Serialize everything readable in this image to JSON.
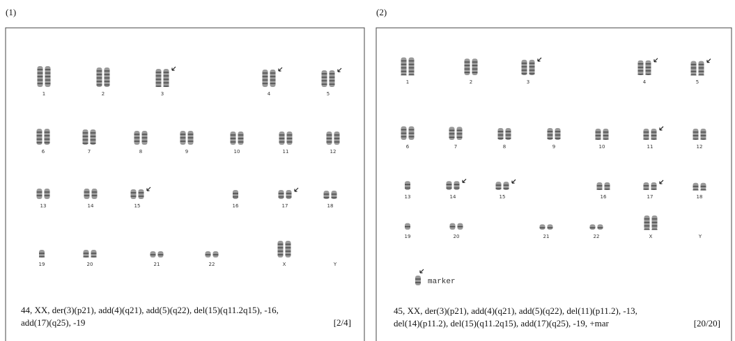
{
  "panels": [
    {
      "label": "(1)",
      "chromosomes": [
        "1",
        "2",
        "3",
        "4",
        "5",
        "6",
        "7",
        "8",
        "9",
        "10",
        "11",
        "12",
        "13",
        "14",
        "15",
        "16",
        "17",
        "18",
        "19",
        "20",
        "21",
        "22",
        "X",
        "Y"
      ],
      "karyotype_lines": [
        "44, XX, der(3)(p21), add(4)(q21), add(5)(q22), del(15)(q11.2q15), -16,",
        "add(17)(q25), -19"
      ],
      "count": "[2/4]"
    },
    {
      "label": "(2)",
      "chromosomes": [
        "1",
        "2",
        "3",
        "4",
        "5",
        "6",
        "7",
        "8",
        "9",
        "10",
        "11",
        "12",
        "13",
        "14",
        "15",
        "16",
        "17",
        "18",
        "19",
        "20",
        "21",
        "22",
        "X",
        "Y"
      ],
      "marker": "marker",
      "karyotype_lines": [
        "45, XX, der(3)(p21), add(4)(q21), add(5)(q22), del(11)(p11.2), -13,",
        "del(14)(p11.2), del(15)(q11.2q15), add(17)(q25), -19, +mar"
      ],
      "count": "[20/20]"
    }
  ]
}
